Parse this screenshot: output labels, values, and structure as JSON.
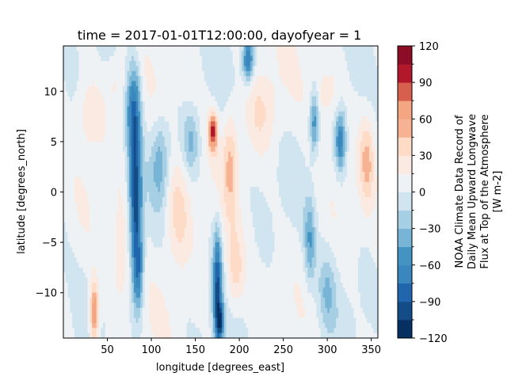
{
  "chart_data": {
    "type": "heatmap",
    "subtype": "filled-contour",
    "title": "time = 2017-01-01T12:00:00, dayofyear = 1",
    "xlabel": "longitude [degrees_east]",
    "ylabel": "latitude [degrees_north]",
    "xlim": [
      0,
      357.5
    ],
    "ylim": [
      -14.5,
      14.5
    ],
    "x_ticks": [
      50,
      100,
      150,
      200,
      250,
      300,
      350
    ],
    "y_ticks": [
      -10,
      -5,
      0,
      5,
      10
    ],
    "colorbar": {
      "label_lines": [
        "NOAA Climate Data Record of",
        "Daily Mean Upward Longwave",
        "Flux at Top of the Atmosphere",
        "[W m-2]"
      ],
      "levels": [
        -120,
        -105,
        -90,
        -75,
        -60,
        -45,
        -30,
        -15,
        0,
        15,
        30,
        45,
        60,
        75,
        90,
        105,
        120
      ],
      "tick_values": [
        -120,
        -90,
        -60,
        -30,
        0,
        30,
        60,
        90,
        120
      ],
      "colormap": "RdBu_r",
      "colors": [
        "#053061",
        "#134c87",
        "#2166ac",
        "#3a87bd",
        "#4393c3",
        "#78b4d6",
        "#a7cfe4",
        "#d1e5f0",
        "#eef2f5",
        "#faeae1",
        "#fddbc7",
        "#f6b293",
        "#f4a582",
        "#d6604d",
        "#b2182b",
        "#8c0d25",
        "#67001f"
      ]
    },
    "field_description_features": {
      "lon_start": 0,
      "lon_step": 5,
      "lat_start": -14.5,
      "lat_step": 1.0,
      "blobs": [
        {
          "lon": 80,
          "lat": 8,
          "w": 8,
          "h": 5,
          "value": -80
        },
        {
          "lon": 82,
          "lat": -1,
          "w": 7,
          "h": 6,
          "value": -100
        },
        {
          "lon": 85,
          "lat": -8,
          "w": 6,
          "h": 4,
          "value": -70
        },
        {
          "lon": 110,
          "lat": 3,
          "w": 10,
          "h": 4,
          "value": -40
        },
        {
          "lon": 145,
          "lat": 5,
          "w": 9,
          "h": 3,
          "value": -35
        },
        {
          "lon": 175,
          "lat": -9,
          "w": 5,
          "h": 5,
          "value": -90
        },
        {
          "lon": 178,
          "lat": -13,
          "w": 5,
          "h": 2,
          "value": -80
        },
        {
          "lon": 210,
          "lat": 13,
          "w": 6,
          "h": 2,
          "value": -80
        },
        {
          "lon": 285,
          "lat": 7,
          "w": 5,
          "h": 3,
          "value": -60
        },
        {
          "lon": 280,
          "lat": -5,
          "w": 6,
          "h": 4,
          "value": -45
        },
        {
          "lon": 315,
          "lat": 5,
          "w": 6,
          "h": 3,
          "value": -70
        },
        {
          "lon": 300,
          "lat": -10,
          "w": 10,
          "h": 4,
          "value": -30
        },
        {
          "lon": 35,
          "lat": -12,
          "w": 5,
          "h": 3,
          "value": 80
        },
        {
          "lon": 30,
          "lat": 8,
          "w": 15,
          "h": 4,
          "value": 25
        },
        {
          "lon": 130,
          "lat": -2,
          "w": 14,
          "h": 5,
          "value": 35
        },
        {
          "lon": 170,
          "lat": 6,
          "w": 5,
          "h": 2,
          "value": 90
        },
        {
          "lon": 190,
          "lat": 3,
          "w": 8,
          "h": 5,
          "value": 40
        },
        {
          "lon": 195,
          "lat": -8,
          "w": 10,
          "h": 4,
          "value": 35
        },
        {
          "lon": 225,
          "lat": 8,
          "w": 18,
          "h": 4,
          "value": 25
        },
        {
          "lon": 300,
          "lat": 10,
          "w": 15,
          "h": 3,
          "value": 25
        },
        {
          "lon": 345,
          "lat": 3,
          "w": 8,
          "h": 4,
          "value": 40
        },
        {
          "lon": 60,
          "lat": 11,
          "w": 12,
          "h": 3,
          "value": 20
        },
        {
          "lon": 65,
          "lat": -7,
          "w": 10,
          "h": 5,
          "value": 25
        }
      ]
    }
  }
}
